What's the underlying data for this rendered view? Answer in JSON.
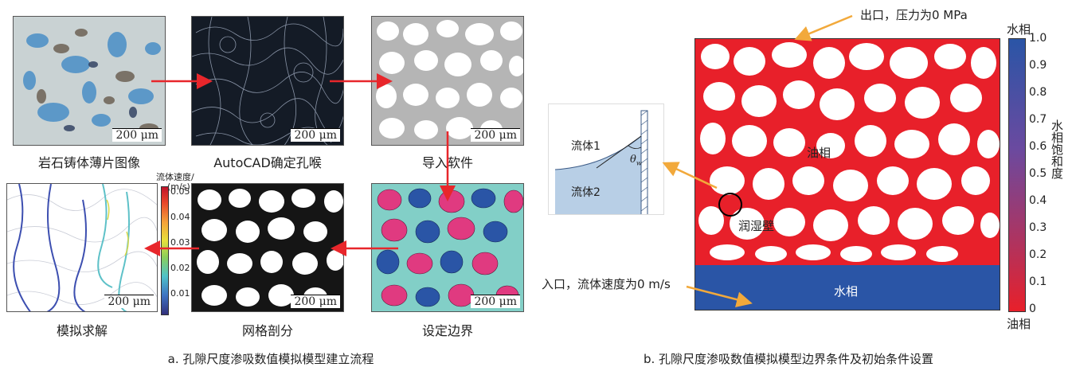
{
  "left": {
    "panels": [
      {
        "label": "岩石铸体薄片图像",
        "scale": "200 μm"
      },
      {
        "label": "AutoCAD确定孔喉",
        "scale": "200 μm"
      },
      {
        "label": "导入软件",
        "scale": "200 μm"
      },
      {
        "label": "模拟求解",
        "scale": "200 μm"
      },
      {
        "label": "网格剖分",
        "scale": "200 μm"
      },
      {
        "label": "设定边界",
        "scale": "200 μm"
      }
    ],
    "colorbar": {
      "title": "流体速度/",
      "unit": "(m/s)",
      "ticks": [
        "0.05",
        "0.04",
        "0.03",
        "0.02",
        "0.01"
      ]
    },
    "caption": "a. 孔隙尺度渗吸数值模拟模型建立流程"
  },
  "right": {
    "outlet": "出口，压力为0 MPa",
    "inlet": "入口，流体速度为0 m/s",
    "water_label": "水相",
    "oil_label": "油相",
    "wet_wall": "润湿壁",
    "inset": {
      "fluid1": "流体1",
      "fluid2": "流体2",
      "theta": "θ",
      "theta_sub": "w"
    },
    "colorbar": {
      "top": "水相",
      "bottom": "油相",
      "axis_title": "水相饱和度",
      "ticks": [
        "1.0",
        "0.9",
        "0.8",
        "0.7",
        "0.6",
        "0.5",
        "0.4",
        "0.3",
        "0.2",
        "0.1",
        "0"
      ]
    },
    "caption": "b. 孔隙尺度渗吸数值模拟模型边界条件及初始条件设置"
  },
  "colors": {
    "arrow_red": "#e8262b",
    "arrow_orange": "#f2a93b",
    "oil_red": "#e8202a",
    "water_blue": "#2a55a6",
    "teal": "#7dcfc8",
    "pink": "#e03a80"
  }
}
